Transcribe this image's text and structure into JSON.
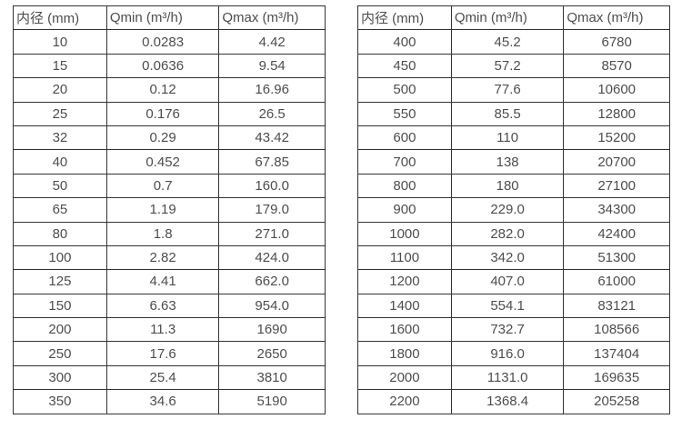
{
  "page": {
    "background_color": "#ffffff",
    "border_color": "#333333",
    "text_color": "#4d4d4d"
  },
  "tables": [
    {
      "name": "small-diameter-table",
      "headers": [
        "内径 (mm)",
        "Qmin (m³/h)",
        "Qmax (m³/h)"
      ],
      "rows": [
        [
          "10",
          "0.0283",
          "4.42"
        ],
        [
          "15",
          "0.0636",
          "9.54"
        ],
        [
          "20",
          "0.12",
          "16.96"
        ],
        [
          "25",
          "0.176",
          "26.5"
        ],
        [
          "32",
          "0.29",
          "43.42"
        ],
        [
          "40",
          "0.452",
          "67.85"
        ],
        [
          "50",
          "0.7",
          "160.0"
        ],
        [
          "65",
          "1.19",
          "179.0"
        ],
        [
          "80",
          "1.8",
          "271.0"
        ],
        [
          "100",
          "2.82",
          "424.0"
        ],
        [
          "125",
          "4.41",
          "662.0"
        ],
        [
          "150",
          "6.63",
          "954.0"
        ],
        [
          "200",
          "11.3",
          "1690"
        ],
        [
          "250",
          "17.6",
          "2650"
        ],
        [
          "300",
          "25.4",
          "3810"
        ],
        [
          "350",
          "34.6",
          "5190"
        ]
      ]
    },
    {
      "name": "large-diameter-table",
      "headers": [
        "内径 (mm)",
        "Qmin (m³/h)",
        "Qmax (m³/h)"
      ],
      "rows": [
        [
          "400",
          "45.2",
          "6780"
        ],
        [
          "450",
          "57.2",
          "8570"
        ],
        [
          "500",
          "77.6",
          "10600"
        ],
        [
          "550",
          "85.5",
          "12800"
        ],
        [
          "600",
          "110",
          "15200"
        ],
        [
          "700",
          "138",
          "20700"
        ],
        [
          "800",
          "180",
          "27100"
        ],
        [
          "900",
          "229.0",
          "34300"
        ],
        [
          "1000",
          "282.0",
          "42400"
        ],
        [
          "1100",
          "342.0",
          "51300"
        ],
        [
          "1200",
          "407.0",
          "61000"
        ],
        [
          "1400",
          "554.1",
          "83121"
        ],
        [
          "1600",
          "732.7",
          "108566"
        ],
        [
          "1800",
          "916.0",
          "137404"
        ],
        [
          "2000",
          "1131.0",
          "169635"
        ],
        [
          "2200",
          "1368.4",
          "205258"
        ]
      ]
    }
  ]
}
